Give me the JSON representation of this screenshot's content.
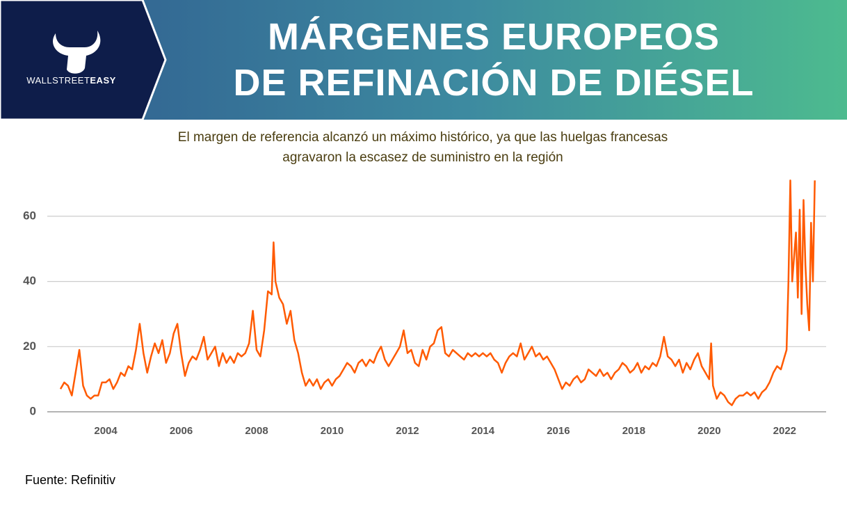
{
  "header": {
    "brand": "WALLSTREET",
    "brand_bold": "EASY",
    "title": [
      "MÁRGENES EUROPEOS",
      "DE REFINACIÓN DE DIÉSEL"
    ]
  },
  "chart_data": {
    "type": "line",
    "subtitle": [
      "El margen de referencia alcanzó un máximo histórico, ya que las huelgas francesas",
      "agravaron la escasez de suministro en la región"
    ],
    "color": "#ff5a00",
    "x": [
      2002.8,
      2002.9,
      2003.0,
      2003.1,
      2003.2,
      2003.3,
      2003.4,
      2003.5,
      2003.6,
      2003.7,
      2003.8,
      2003.9,
      2004.0,
      2004.1,
      2004.2,
      2004.3,
      2004.4,
      2004.5,
      2004.6,
      2004.7,
      2004.8,
      2004.9,
      2005.0,
      2005.1,
      2005.2,
      2005.3,
      2005.4,
      2005.5,
      2005.6,
      2005.7,
      2005.8,
      2005.9,
      2006.0,
      2006.1,
      2006.2,
      2006.3,
      2006.4,
      2006.5,
      2006.6,
      2006.7,
      2006.8,
      2006.9,
      2007.0,
      2007.1,
      2007.2,
      2007.3,
      2007.4,
      2007.5,
      2007.6,
      2007.7,
      2007.8,
      2007.9,
      2008.0,
      2008.1,
      2008.2,
      2008.3,
      2008.4,
      2008.45,
      2008.5,
      2008.6,
      2008.7,
      2008.8,
      2008.9,
      2009.0,
      2009.1,
      2009.2,
      2009.3,
      2009.4,
      2009.5,
      2009.6,
      2009.7,
      2009.8,
      2009.9,
      2010.0,
      2010.1,
      2010.2,
      2010.3,
      2010.4,
      2010.5,
      2010.6,
      2010.7,
      2010.8,
      2010.9,
      2011.0,
      2011.1,
      2011.2,
      2011.3,
      2011.4,
      2011.5,
      2011.6,
      2011.7,
      2011.8,
      2011.9,
      2012.0,
      2012.1,
      2012.2,
      2012.3,
      2012.4,
      2012.5,
      2012.6,
      2012.7,
      2012.8,
      2012.9,
      2013.0,
      2013.1,
      2013.2,
      2013.3,
      2013.4,
      2013.5,
      2013.6,
      2013.7,
      2013.8,
      2013.9,
      2014.0,
      2014.1,
      2014.2,
      2014.3,
      2014.4,
      2014.5,
      2014.6,
      2014.7,
      2014.8,
      2014.9,
      2015.0,
      2015.1,
      2015.2,
      2015.3,
      2015.4,
      2015.5,
      2015.6,
      2015.7,
      2015.8,
      2015.9,
      2016.0,
      2016.1,
      2016.2,
      2016.3,
      2016.4,
      2016.5,
      2016.6,
      2016.7,
      2016.8,
      2016.9,
      2017.0,
      2017.1,
      2017.2,
      2017.3,
      2017.4,
      2017.5,
      2017.6,
      2017.7,
      2017.8,
      2017.9,
      2018.0,
      2018.1,
      2018.2,
      2018.3,
      2018.4,
      2018.5,
      2018.6,
      2018.7,
      2018.8,
      2018.9,
      2019.0,
      2019.1,
      2019.2,
      2019.3,
      2019.4,
      2019.5,
      2019.6,
      2019.7,
      2019.8,
      2019.9,
      2020.0,
      2020.05,
      2020.1,
      2020.2,
      2020.3,
      2020.4,
      2020.5,
      2020.6,
      2020.7,
      2020.8,
      2020.9,
      2021.0,
      2021.1,
      2021.2,
      2021.3,
      2021.4,
      2021.5,
      2021.6,
      2021.7,
      2021.8,
      2021.9,
      2022.0,
      2022.05,
      2022.1,
      2022.15,
      2022.2,
      2022.3,
      2022.35,
      2022.4,
      2022.45,
      2022.5,
      2022.55,
      2022.6,
      2022.65,
      2022.7,
      2022.75,
      2022.8
    ],
    "values": [
      7,
      9,
      8,
      5,
      12,
      19,
      8,
      5,
      4,
      5,
      5,
      9,
      9,
      10,
      7,
      9,
      12,
      11,
      14,
      13,
      19,
      27,
      18,
      12,
      17,
      21,
      18,
      22,
      15,
      18,
      24,
      27,
      18,
      11,
      15,
      17,
      16,
      19,
      23,
      16,
      18,
      20,
      14,
      18,
      15,
      17,
      15,
      18,
      17,
      18,
      21,
      31,
      19,
      17,
      25,
      37,
      36,
      52,
      40,
      35,
      33,
      27,
      31,
      22,
      18,
      12,
      8,
      10,
      8,
      10,
      7,
      9,
      10,
      8,
      10,
      11,
      13,
      15,
      14,
      12,
      15,
      16,
      14,
      16,
      15,
      18,
      20,
      16,
      14,
      16,
      18,
      20,
      25,
      18,
      19,
      15,
      14,
      19,
      16,
      20,
      21,
      25,
      26,
      18,
      17,
      19,
      18,
      17,
      16,
      18,
      17,
      18,
      17,
      18,
      17,
      18,
      16,
      15,
      12,
      15,
      17,
      18,
      17,
      21,
      16,
      18,
      20,
      17,
      18,
      16,
      17,
      15,
      13,
      10,
      7,
      9,
      8,
      10,
      11,
      9,
      10,
      13,
      12,
      11,
      13,
      11,
      12,
      10,
      12,
      13,
      15,
      14,
      12,
      13,
      15,
      12,
      14,
      13,
      15,
      14,
      17,
      23,
      17,
      16,
      14,
      16,
      12,
      15,
      13,
      16,
      18,
      14,
      12,
      10,
      21,
      8,
      4,
      6,
      5,
      3,
      2,
      4,
      5,
      5,
      6,
      5,
      6,
      4,
      6,
      7,
      9,
      12,
      14,
      13,
      17,
      19,
      40,
      71,
      40,
      55,
      35,
      62,
      30,
      65,
      45,
      33,
      25,
      58,
      40,
      71
    ],
    "xlim": [
      2002.45,
      2023.1
    ],
    "xticks": [
      2004,
      2006,
      2008,
      2010,
      2012,
      2014,
      2016,
      2018,
      2020,
      2022
    ],
    "ylim": [
      0,
      73
    ],
    "yticks": [
      0,
      20,
      40,
      60
    ],
    "grid": true,
    "source": "Fuente: Refinitiv"
  }
}
